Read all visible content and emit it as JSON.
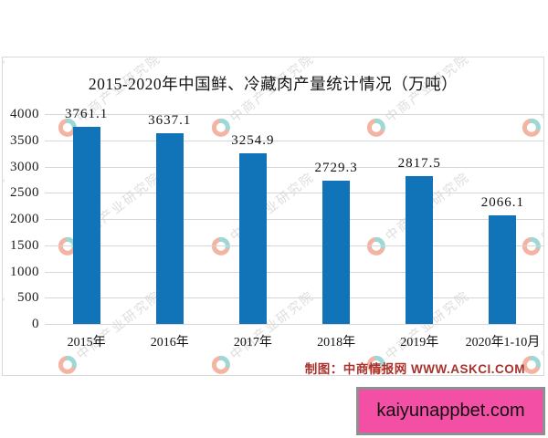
{
  "chart": {
    "title": "2015-2020年中国鲜、冷藏肉产量统计情况（万吨）",
    "source_note": "制图：中商情报网 WWW.ASKCI.COM",
    "watermark_text": "中商产业研究院"
  },
  "chart_data": {
    "type": "bar",
    "title": "2015-2020年中国鲜、冷藏肉产量统计情况（万吨）",
    "categories": [
      "2015年",
      "2016年",
      "2017年",
      "2018年",
      "2019年",
      "2020年1-10月"
    ],
    "values": [
      3761.1,
      3637.1,
      3254.9,
      2729.3,
      2817.5,
      2066.1
    ],
    "value_labels": [
      "3761.1",
      "3637.1",
      "3254.9",
      "2729.3",
      "2817.5",
      "2066.1"
    ],
    "xlabel": "",
    "ylabel": "",
    "ylim": [
      0,
      4000
    ],
    "y_ticks": [
      0,
      500,
      1000,
      1500,
      2000,
      2500,
      3000,
      3500,
      4000
    ],
    "grid": true,
    "legend_position": "none",
    "bar_color": "#1173b8"
  },
  "banner": {
    "label": "kaiyunappbet.com",
    "background": "#f24fa5",
    "border": "#8f8f8f"
  },
  "colors": {
    "bar": "#1173b8",
    "gridline": "#d6d6d6",
    "source_text": "#a8332c",
    "watermark_gray": "#bcbcbc",
    "watermark_orange": "#e96b4b",
    "watermark_teal": "#3fb0aa"
  }
}
